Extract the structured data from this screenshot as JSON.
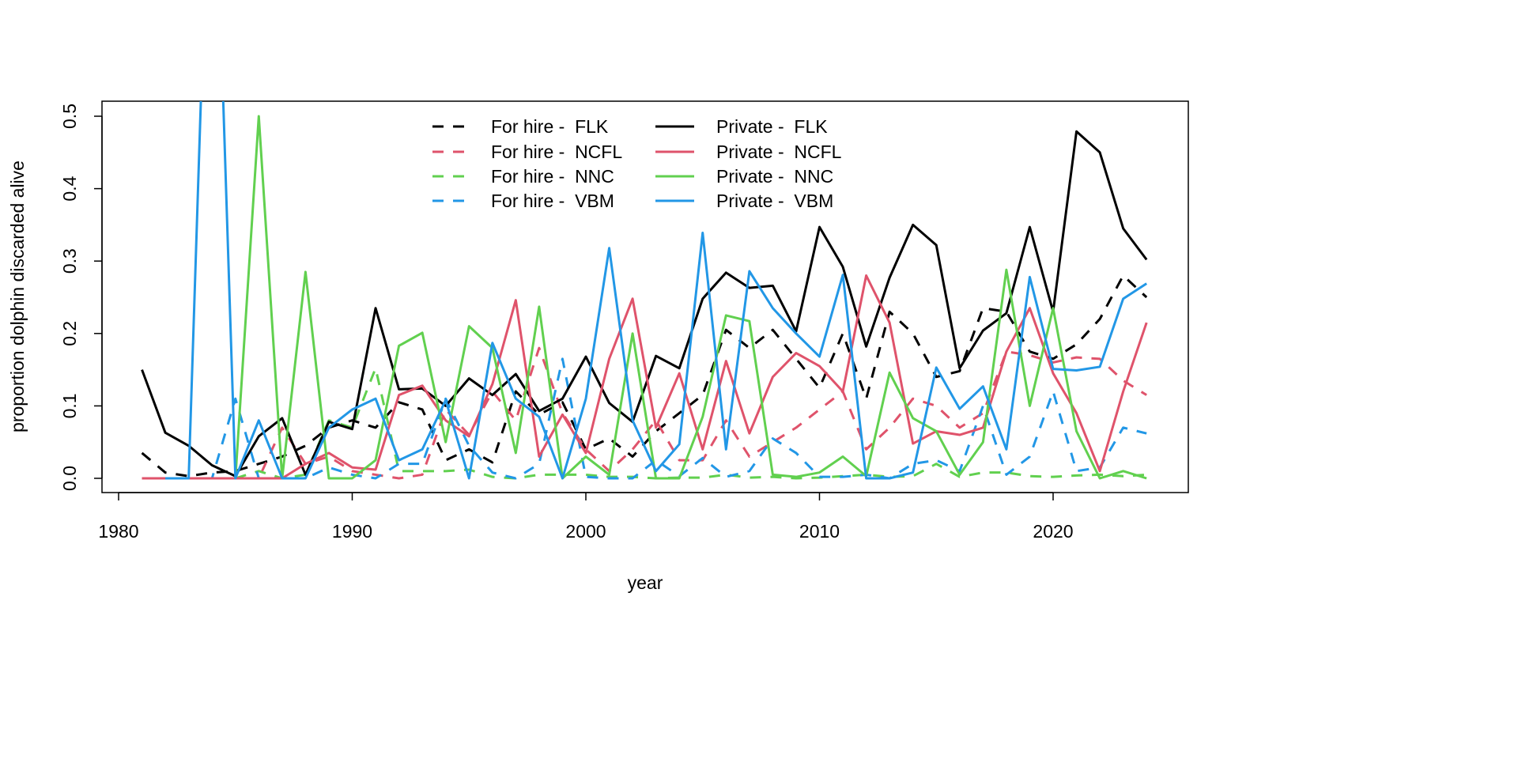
{
  "chart_data": {
    "type": "line",
    "title": "",
    "xlabel": "year",
    "ylabel": "proportion dolphin discarded alive",
    "xlim": [
      1980,
      2025
    ],
    "ylim": [
      0,
      0.5
    ],
    "x_ticks": [
      "1980",
      "1990",
      "2000",
      "2010",
      "2020"
    ],
    "y_ticks": [
      "0.0",
      "0.1",
      "0.2",
      "0.3",
      "0.4",
      "0.5"
    ],
    "legend_position": "top-center",
    "x": [
      1981,
      1982,
      1983,
      1984,
      1985,
      1986,
      1987,
      1988,
      1989,
      1990,
      1991,
      1992,
      1993,
      1994,
      1995,
      1996,
      1997,
      1998,
      1999,
      2000,
      2001,
      2002,
      2003,
      2004,
      2005,
      2006,
      2007,
      2008,
      2009,
      2010,
      2011,
      2012,
      2013,
      2014,
      2015,
      2016,
      2017,
      2018,
      2019,
      2020,
      2021,
      2022,
      2023,
      2024
    ],
    "series": [
      {
        "name": "For hire -  FLK",
        "color": "#000000",
        "dash": true,
        "values": [
          0.035,
          0.008,
          0.003,
          0.008,
          0.01,
          0.02,
          0.03,
          0.045,
          0.07,
          0.08,
          0.07,
          0.105,
          0.095,
          0.025,
          0.04,
          0.022,
          0.12,
          0.088,
          0.105,
          0.04,
          0.055,
          0.03,
          0.065,
          0.09,
          0.115,
          0.205,
          0.18,
          0.205,
          0.165,
          0.125,
          0.2,
          0.11,
          0.23,
          0.2,
          0.14,
          0.148,
          0.235,
          0.23,
          0.175,
          0.165,
          0.185,
          0.22,
          0.28,
          0.25
        ]
      },
      {
        "name": "For hire -  NCFL",
        "color": "#DF536B",
        "dash": true,
        "values": [
          0,
          0,
          0,
          0,
          0,
          0,
          0.07,
          0.02,
          0.03,
          0.01,
          0.005,
          0.0,
          0.005,
          0.095,
          0.06,
          0.12,
          0.08,
          0.18,
          0.09,
          0.04,
          0.01,
          0.04,
          0.08,
          0.025,
          0.025,
          0.08,
          0.03,
          0.05,
          0.07,
          0.095,
          0.12,
          0.04,
          0.07,
          0.11,
          0.1,
          0.07,
          0.09,
          0.175,
          0.17,
          0.16,
          0.167,
          0.165,
          0.135,
          0.115
        ]
      },
      {
        "name": "For hire -  NNC",
        "color": "#61D04F",
        "dash": true,
        "values": [
          null,
          null,
          null,
          null,
          0,
          0.01,
          0,
          0.005,
          0.08,
          0.07,
          0.152,
          0.01,
          0.01,
          0.01,
          0.012,
          0.002,
          0,
          0.005,
          0.005,
          0.005,
          0.002,
          0.002,
          0.0,
          0.001,
          0.001,
          0.005,
          0.001,
          0.002,
          0.0,
          0.001,
          0.003,
          0.005,
          0.002,
          0.003,
          0.02,
          0.002,
          0.008,
          0.008,
          0.003,
          0.002,
          0.004,
          0.005,
          0.003,
          0.005
        ]
      },
      {
        "name": "For hire -  VBM",
        "color": "#2297E6",
        "dash": true,
        "values": [
          null,
          0,
          0,
          0,
          0.11,
          0,
          0,
          0,
          0.015,
          0.005,
          0.0,
          0.02,
          0.02,
          0.11,
          0.045,
          0.008,
          0,
          0.02,
          0.165,
          0.002,
          0,
          0,
          0.025,
          0.003,
          0.028,
          0.002,
          0.01,
          0.055,
          0.035,
          0.002,
          0.002,
          0.005,
          0,
          0.02,
          0.025,
          0.01,
          0.1,
          0.005,
          0.03,
          0.12,
          0.01,
          0.015,
          0.07,
          0.062
        ]
      },
      {
        "name": "Private -  FLK",
        "color": "#000000",
        "dash": false,
        "values": [
          0.15,
          0.063,
          0.045,
          0.018,
          0.003,
          0.058,
          0.083,
          0.005,
          0.078,
          0.068,
          0.235,
          0.123,
          0.124,
          0.1,
          0.138,
          0.115,
          0.144,
          0.093,
          0.11,
          0.168,
          0.104,
          0.078,
          0.169,
          0.152,
          0.248,
          0.284,
          0.263,
          0.266,
          0.203,
          0.347,
          0.292,
          0.182,
          0.277,
          0.35,
          0.322,
          0.152,
          0.204,
          0.228,
          0.347,
          0.23,
          0.479,
          0.45,
          0.345,
          0.302
        ]
      },
      {
        "name": "Private -  NCFL",
        "color": "#DF536B",
        "dash": false,
        "values": [
          0,
          0,
          0,
          0,
          0,
          0,
          0,
          0.02,
          0.035,
          0.015,
          0.012,
          0.115,
          0.128,
          0.08,
          0.058,
          0.13,
          0.246,
          0.03,
          0.088,
          0.035,
          0.165,
          0.248,
          0.07,
          0.145,
          0.04,
          0.162,
          0.062,
          0.14,
          0.173,
          0.155,
          0.12,
          0.28,
          0.215,
          0.048,
          0.065,
          0.06,
          0.07,
          0.175,
          0.235,
          0.145,
          0.09,
          0.01,
          0.12,
          0.215
        ]
      },
      {
        "name": "Private -  NNC",
        "color": "#61D04F",
        "dash": false,
        "values": [
          null,
          null,
          null,
          null,
          0,
          0.5,
          0,
          0.285,
          0,
          0,
          0.025,
          0.183,
          0.201,
          0.05,
          0.21,
          0.18,
          0.035,
          0.237,
          0,
          0.03,
          0.005,
          0.2,
          0,
          0,
          0.085,
          0.225,
          0.217,
          0.005,
          0.002,
          0.008,
          0.03,
          0.003,
          0.146,
          0.083,
          0.065,
          0.005,
          0.05,
          0.288,
          0.1,
          0.235,
          0.065,
          0,
          0.01,
          0
        ]
      },
      {
        "name": "Private -  VBM",
        "color": "#2297E6",
        "dash": false,
        "values": [
          null,
          0,
          0,
          1.0,
          0,
          0.08,
          0,
          0,
          0.07,
          0.095,
          0.11,
          0.025,
          0.04,
          0.108,
          0,
          0.187,
          0.11,
          0.085,
          0,
          0.11,
          0.318,
          0.08,
          0.01,
          0.047,
          0.339,
          0.04,
          0.286,
          0.235,
          0.2,
          0.168,
          0.281,
          0,
          0,
          0.008,
          0.153,
          0.096,
          0.127,
          0.04,
          0.278,
          0.151,
          0.149,
          0.154,
          0.248,
          0.269
        ]
      }
    ]
  }
}
